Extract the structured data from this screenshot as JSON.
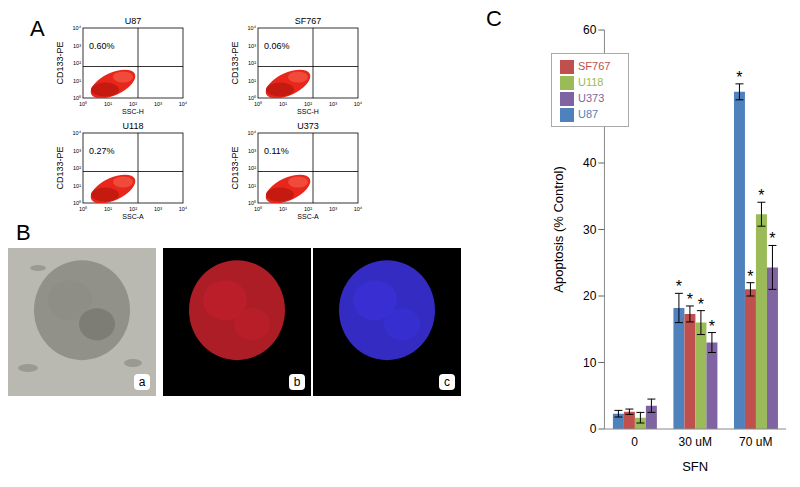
{
  "figure": {
    "panel_a": {
      "label": "A",
      "ticks": [
        "10⁰",
        "10¹",
        "10²",
        "10³",
        "10⁴"
      ],
      "plots": [
        {
          "title": "U87",
          "percent_label": "0.60%",
          "y_label": "CD133-PE",
          "x_label": "SSC-H"
        },
        {
          "title": "SF767",
          "percent_label": "0.06%",
          "y_label": "CD133-PE",
          "x_label": "SSC-H"
        },
        {
          "title": "U118",
          "percent_label": "0.27%",
          "y_label": "CD133-PE",
          "x_label": "SSC-A"
        },
        {
          "title": "U373",
          "percent_label": "0.11%",
          "y_label": "CD133-PE",
          "x_label": "SSC-A"
        }
      ]
    },
    "panel_b": {
      "label": "B",
      "images": [
        {
          "label": "a"
        },
        {
          "label": "b"
        },
        {
          "label": "c"
        }
      ]
    }
  },
  "chart_data": {
    "type": "bar",
    "panel_label": "C",
    "x_label": "SFN",
    "y_label": "Apoptosis (% Control)",
    "categories": [
      "0",
      "30 uM",
      "70 uM"
    ],
    "series": [
      {
        "name": "U87",
        "color": "#4f81bd",
        "values": [
          2.3,
          18.2,
          50.7
        ],
        "errors": [
          0.5,
          2.2,
          1.2
        ],
        "significance": [
          null,
          "*",
          "*"
        ]
      },
      {
        "name": "SF767",
        "color": "#c0504d",
        "values": [
          2.6,
          17.3,
          21.0
        ],
        "errors": [
          0.4,
          1.2,
          1.0
        ],
        "significance": [
          null,
          "*",
          "*"
        ]
      },
      {
        "name": "U118",
        "color": "#9bbb59",
        "values": [
          1.7,
          16.0,
          32.3
        ],
        "errors": [
          0.8,
          1.8,
          1.8
        ],
        "significance": [
          null,
          "*",
          "*"
        ]
      },
      {
        "name": "U373",
        "color": "#8064a2",
        "values": [
          3.5,
          13.0,
          24.3
        ],
        "errors": [
          1.0,
          1.5,
          3.3
        ],
        "significance": [
          null,
          "*",
          "*"
        ]
      }
    ],
    "ylim": [
      0,
      60
    ],
    "yticks": [
      0,
      10,
      20,
      30,
      40,
      50,
      60
    ],
    "legend": "top-left",
    "grid": false
  }
}
